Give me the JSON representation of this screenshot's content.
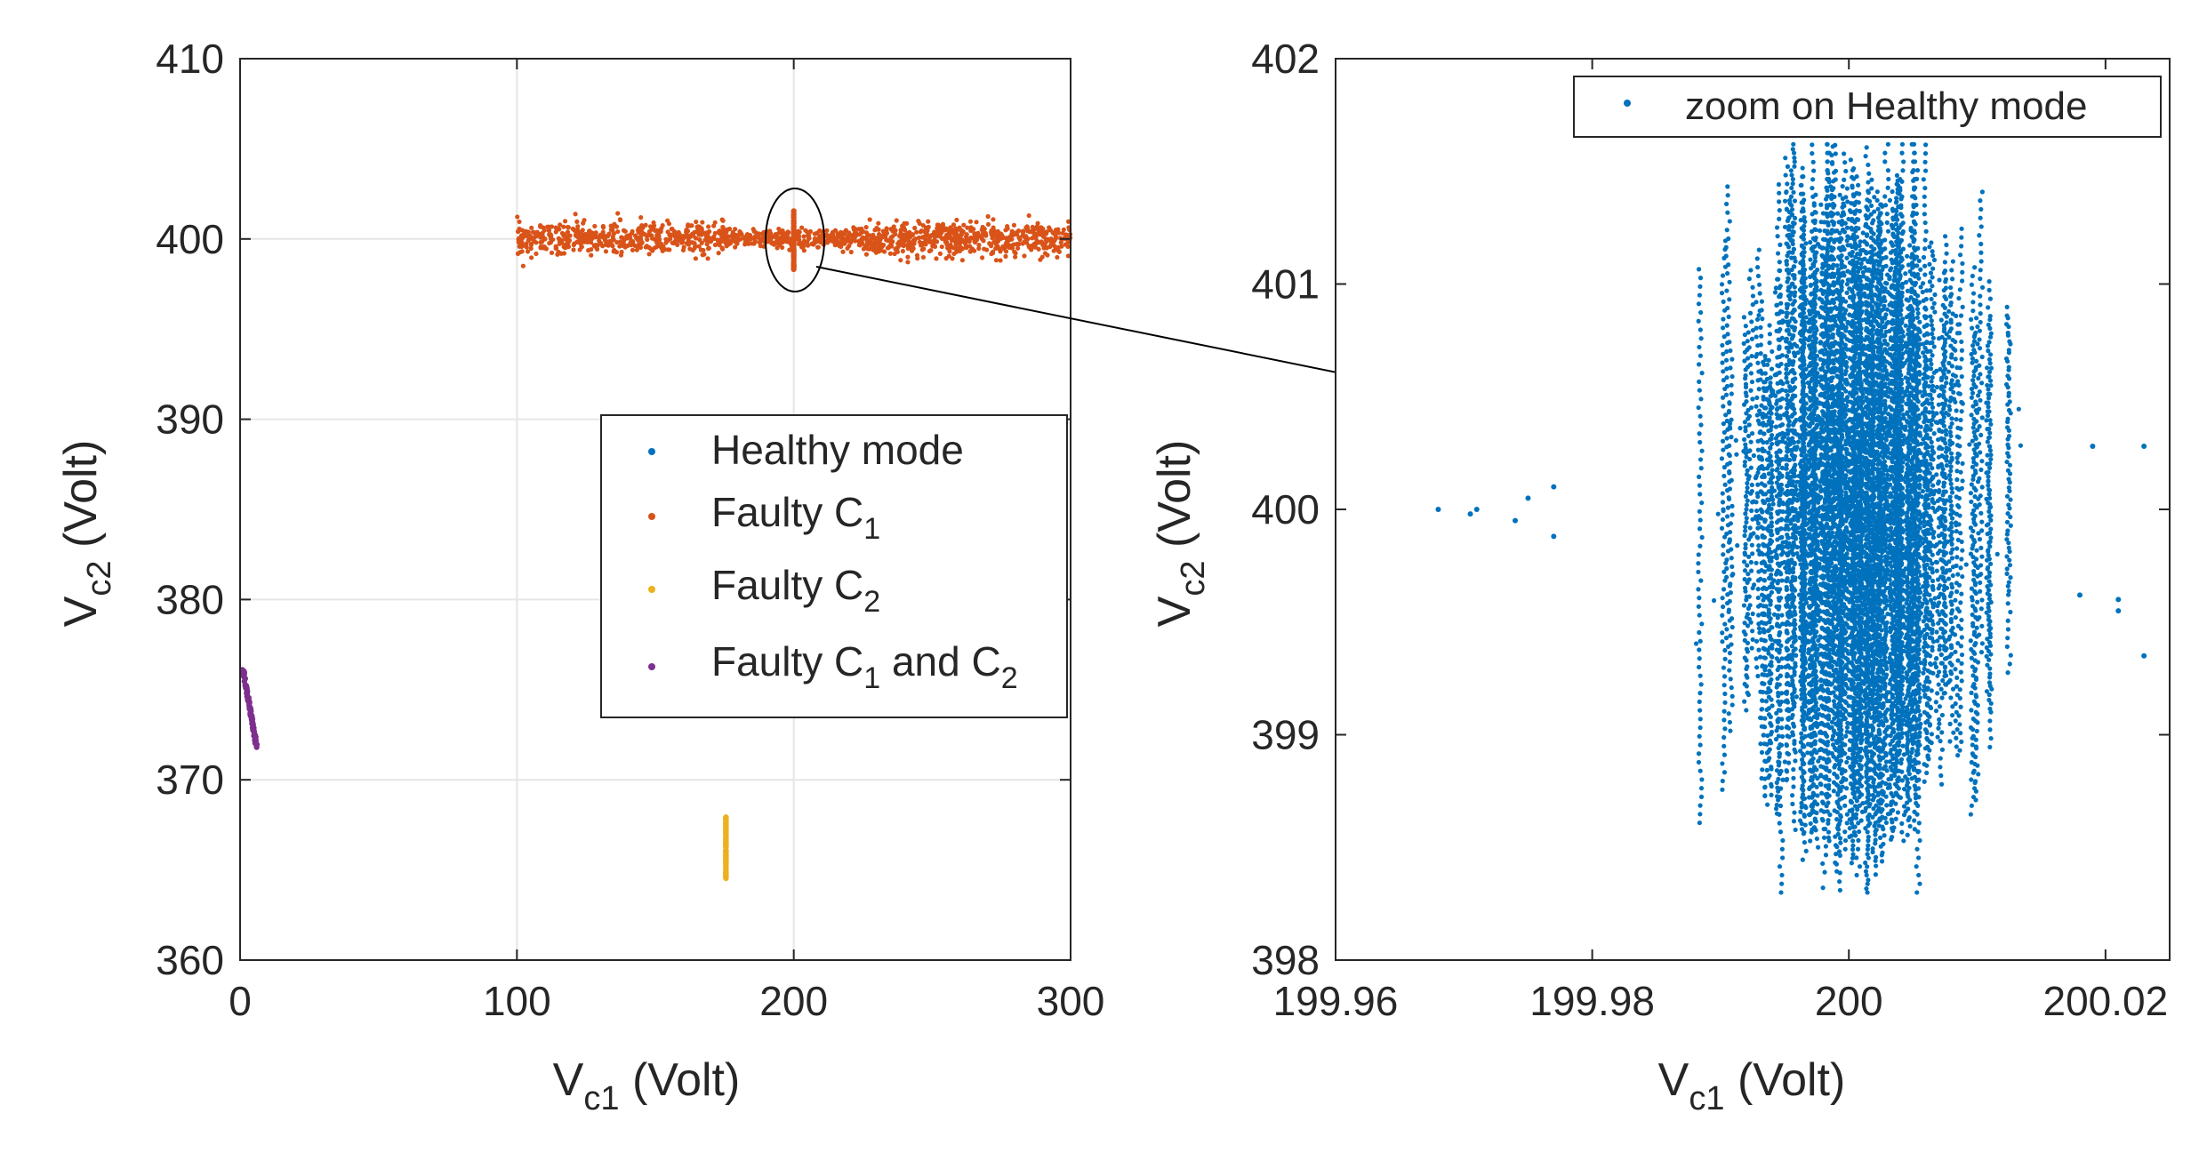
{
  "chart_data": [
    {
      "type": "scatter",
      "xlabel": {
        "main": "V",
        "sub": "c1",
        "tail": " (Volt)"
      },
      "ylabel": {
        "main": "V",
        "sub": "c2",
        "tail": " (Volt)"
      },
      "xlim": [
        0,
        300
      ],
      "ylim": [
        360,
        410
      ],
      "xticks": [
        0,
        100,
        200,
        300
      ],
      "xtick_labels": [
        "0",
        "100",
        "200",
        "300"
      ],
      "yticks": [
        360,
        370,
        380,
        390,
        400,
        410
      ],
      "ytick_labels": [
        "360",
        "370",
        "380",
        "390",
        "400",
        "410"
      ],
      "grid": true,
      "legend_position": "center-right",
      "series": [
        {
          "name": "Healthy mode",
          "label_main": "Healthy mode",
          "label_sub": "",
          "label_tail": "",
          "label_sub2": "",
          "color": "#0072BD",
          "x_range": [
            199.97,
            200.02
          ],
          "y_range": [
            398.3,
            401.6
          ]
        },
        {
          "name": "Faulty C1",
          "label_main": "Faulty C",
          "label_sub": "1",
          "label_tail": "",
          "label_sub2": "",
          "color": "#D95319",
          "x_range": [
            100,
            300
          ],
          "y_range": [
            398.5,
            401.5
          ]
        },
        {
          "name": "Faulty C2",
          "label_main": "Faulty C",
          "label_sub": "2",
          "label_tail": "",
          "label_sub2": "",
          "color": "#EDB120",
          "x": 175.5,
          "y_range": [
            364.5,
            368
          ]
        },
        {
          "name": "Faulty C1 and C2",
          "label_main": "Faulty C",
          "label_sub": "1",
          "label_tail": " and C",
          "label_sub2": "2",
          "color": "#7E2F8E",
          "x_range": [
            1,
            6
          ],
          "y_range": [
            371.8,
            376.2
          ]
        }
      ],
      "annotation": "ellipse around healthy cluster at (200, 400) with arrow to zoomed plot"
    },
    {
      "type": "scatter",
      "xlabel": {
        "main": "V",
        "sub": "c1",
        "tail": " (Volt)"
      },
      "ylabel": {
        "main": "V",
        "sub": "c2",
        "tail": " (Volt)"
      },
      "xlim": [
        199.96,
        200.025
      ],
      "ylim": [
        398,
        402
      ],
      "xticks": [
        199.96,
        199.98,
        200,
        200.02
      ],
      "xtick_labels": [
        "199.96",
        "199.98",
        "200",
        "200.02"
      ],
      "yticks": [
        398,
        399,
        400,
        401,
        402
      ],
      "ytick_labels": [
        "398",
        "399",
        "400",
        "401",
        "402"
      ],
      "grid": false,
      "legend_position": "top-right",
      "series": [
        {
          "name": "zoom on Healthy mode",
          "color": "#0072BD",
          "x_range": [
            199.968,
            200.023
          ],
          "y_range": [
            398.3,
            401.65
          ]
        }
      ]
    }
  ]
}
